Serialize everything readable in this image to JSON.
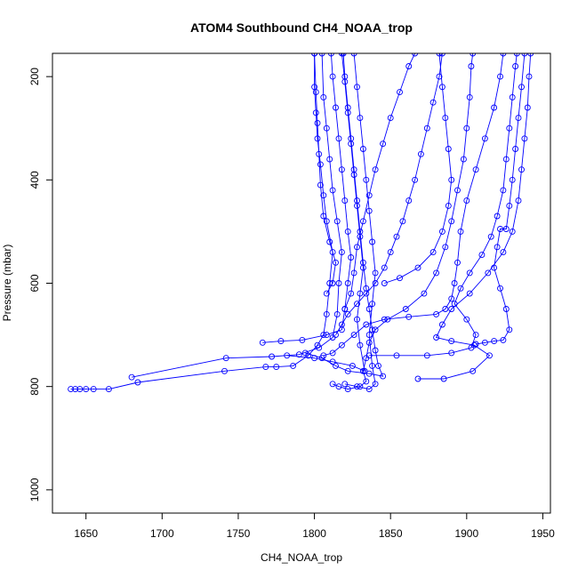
{
  "chart_data": {
    "type": "line",
    "title": "ATOM4 Southbound CH4_NOAA_trop",
    "xlabel": "CH4_NOAA_trop",
    "ylabel": "Pressure (mbar)",
    "xlim": [
      1628,
      1955
    ],
    "ylim": [
      1045,
      155
    ],
    "y_inverted": true,
    "x_ticks": [
      1650,
      1700,
      1750,
      1800,
      1850,
      1900,
      1950
    ],
    "y_ticks": [
      200,
      400,
      600,
      800,
      1000
    ],
    "grid": false,
    "legend": "none",
    "marker": "open-circle",
    "color": "#0000ff",
    "series": [
      {
        "points": [
          [
            1640,
            805
          ],
          [
            1643,
            805
          ],
          [
            1646,
            805
          ],
          [
            1650,
            805
          ],
          [
            1655,
            805
          ],
          [
            1665,
            805
          ],
          [
            1684,
            792
          ],
          [
            1741,
            770
          ],
          [
            1768,
            762
          ],
          [
            1775,
            762
          ],
          [
            1786,
            760
          ],
          [
            1796,
            740
          ],
          [
            1802,
            720
          ],
          [
            1806,
            700
          ],
          [
            1808,
            660
          ],
          [
            1810,
            600
          ],
          [
            1812,
            540
          ],
          [
            1808,
            480
          ],
          [
            1806,
            430
          ],
          [
            1804,
            370
          ],
          [
            1802,
            320
          ],
          [
            1801,
            270
          ],
          [
            1800,
            220
          ],
          [
            1800,
            155
          ]
        ]
      },
      {
        "points": [
          [
            1680,
            782
          ],
          [
            1742,
            745
          ],
          [
            1772,
            742
          ],
          [
            1790,
            738
          ],
          [
            1803,
            725
          ],
          [
            1812,
            705
          ],
          [
            1815,
            660
          ],
          [
            1816,
            600
          ],
          [
            1818,
            540
          ],
          [
            1815,
            480
          ],
          [
            1812,
            420
          ],
          [
            1810,
            360
          ],
          [
            1808,
            300
          ],
          [
            1806,
            240
          ],
          [
            1805,
            155
          ]
        ]
      },
      {
        "points": [
          [
            1766,
            715
          ],
          [
            1778,
            712
          ],
          [
            1792,
            710
          ],
          [
            1808,
            700
          ],
          [
            1818,
            690
          ],
          [
            1820,
            650
          ],
          [
            1822,
            600
          ],
          [
            1824,
            550
          ],
          [
            1822,
            500
          ],
          [
            1820,
            440
          ],
          [
            1818,
            380
          ],
          [
            1816,
            320
          ],
          [
            1814,
            260
          ],
          [
            1812,
            200
          ],
          [
            1811,
            155
          ]
        ]
      },
      {
        "points": [
          [
            1782,
            740
          ],
          [
            1800,
            745
          ],
          [
            1812,
            752
          ],
          [
            1825,
            760
          ],
          [
            1833,
            770
          ],
          [
            1830,
            720
          ],
          [
            1828,
            670
          ],
          [
            1830,
            620
          ],
          [
            1832,
            570
          ],
          [
            1830,
            510
          ],
          [
            1828,
            450
          ],
          [
            1826,
            390
          ],
          [
            1824,
            330
          ],
          [
            1822,
            270
          ],
          [
            1820,
            210
          ],
          [
            1818,
            155
          ]
        ]
      },
      {
        "points": [
          [
            1820,
            795
          ],
          [
            1828,
            800
          ],
          [
            1836,
            805
          ],
          [
            1840,
            795
          ],
          [
            1838,
            760
          ],
          [
            1836,
            700
          ],
          [
            1838,
            640
          ],
          [
            1840,
            580
          ],
          [
            1838,
            520
          ],
          [
            1836,
            460
          ],
          [
            1834,
            400
          ],
          [
            1832,
            340
          ],
          [
            1830,
            280
          ],
          [
            1828,
            220
          ],
          [
            1826,
            155
          ]
        ]
      },
      {
        "points": [
          [
            1806,
            740
          ],
          [
            1812,
            735
          ],
          [
            1818,
            720
          ],
          [
            1826,
            700
          ],
          [
            1834,
            680
          ],
          [
            1846,
            670
          ],
          [
            1862,
            665
          ],
          [
            1880,
            660
          ],
          [
            1886,
            650
          ],
          [
            1890,
            630
          ],
          [
            1892,
            600
          ],
          [
            1894,
            560
          ],
          [
            1896,
            500
          ],
          [
            1900,
            440
          ],
          [
            1906,
            380
          ],
          [
            1912,
            320
          ],
          [
            1918,
            260
          ],
          [
            1922,
            200
          ],
          [
            1924,
            155
          ]
        ]
      },
      {
        "points": [
          [
            1868,
            785
          ],
          [
            1885,
            785
          ],
          [
            1904,
            770
          ],
          [
            1915,
            740
          ],
          [
            1905,
            720
          ],
          [
            1890,
            712
          ],
          [
            1880,
            705
          ],
          [
            1884,
            680
          ],
          [
            1890,
            650
          ],
          [
            1902,
            620
          ],
          [
            1914,
            580
          ],
          [
            1924,
            540
          ],
          [
            1930,
            500
          ],
          [
            1934,
            440
          ],
          [
            1936,
            380
          ],
          [
            1938,
            320
          ],
          [
            1940,
            260
          ],
          [
            1941,
            200
          ],
          [
            1942,
            155
          ]
        ]
      },
      {
        "points": [
          [
            1836,
            740
          ],
          [
            1854,
            740
          ],
          [
            1874,
            740
          ],
          [
            1890,
            735
          ],
          [
            1903,
            725
          ],
          [
            1906,
            700
          ],
          [
            1900,
            670
          ],
          [
            1892,
            640
          ],
          [
            1896,
            610
          ],
          [
            1902,
            580
          ],
          [
            1910,
            545
          ],
          [
            1916,
            510
          ],
          [
            1920,
            470
          ],
          [
            1924,
            420
          ],
          [
            1926,
            360
          ],
          [
            1928,
            300
          ],
          [
            1930,
            240
          ],
          [
            1932,
            180
          ],
          [
            1933,
            155
          ]
        ]
      },
      {
        "points": [
          [
            1794,
            735
          ],
          [
            1805,
            745
          ],
          [
            1814,
            760
          ],
          [
            1822,
            770
          ],
          [
            1836,
            775
          ],
          [
            1845,
            780
          ],
          [
            1842,
            760
          ],
          [
            1840,
            730
          ],
          [
            1838,
            690
          ],
          [
            1836,
            650
          ],
          [
            1834,
            610
          ],
          [
            1832,
            560
          ],
          [
            1830,
            500
          ],
          [
            1828,
            440
          ],
          [
            1826,
            380
          ],
          [
            1824,
            320
          ],
          [
            1822,
            260
          ],
          [
            1820,
            200
          ],
          [
            1819,
            155
          ]
        ]
      },
      {
        "points": [
          [
            1812,
            795
          ],
          [
            1816,
            800
          ],
          [
            1822,
            805
          ],
          [
            1830,
            800
          ],
          [
            1834,
            790
          ],
          [
            1832,
            770
          ],
          [
            1834,
            745
          ],
          [
            1836,
            715
          ],
          [
            1840,
            690
          ],
          [
            1848,
            670
          ],
          [
            1860,
            650
          ],
          [
            1872,
            620
          ],
          [
            1880,
            580
          ],
          [
            1886,
            530
          ],
          [
            1890,
            480
          ],
          [
            1894,
            420
          ],
          [
            1898,
            360
          ],
          [
            1900,
            300
          ],
          [
            1902,
            240
          ],
          [
            1903,
            180
          ],
          [
            1904,
            155
          ]
        ]
      },
      {
        "points": [
          [
            1906,
            718
          ],
          [
            1912,
            715
          ],
          [
            1918,
            712
          ],
          [
            1924,
            710
          ],
          [
            1928,
            690
          ],
          [
            1926,
            650
          ],
          [
            1922,
            610
          ],
          [
            1918,
            570
          ],
          [
            1920,
            530
          ],
          [
            1922,
            495
          ],
          [
            1926,
            495
          ],
          [
            1928,
            450
          ],
          [
            1930,
            400
          ],
          [
            1932,
            340
          ],
          [
            1934,
            280
          ],
          [
            1936,
            220
          ],
          [
            1938,
            155
          ]
        ]
      },
      {
        "points": [
          [
            1808,
            620
          ],
          [
            1812,
            600
          ],
          [
            1814,
            560
          ],
          [
            1810,
            520
          ],
          [
            1806,
            470
          ],
          [
            1804,
            410
          ],
          [
            1803,
            350
          ],
          [
            1802,
            290
          ],
          [
            1801,
            230
          ],
          [
            1800,
            155
          ]
        ]
      },
      {
        "points": [
          [
            1820,
            650
          ],
          [
            1824,
            620
          ],
          [
            1826,
            580
          ],
          [
            1828,
            530
          ],
          [
            1832,
            480
          ],
          [
            1836,
            430
          ],
          [
            1840,
            380
          ],
          [
            1845,
            330
          ],
          [
            1850,
            280
          ],
          [
            1856,
            230
          ],
          [
            1862,
            180
          ],
          [
            1866,
            155
          ]
        ]
      },
      {
        "points": [
          [
            1846,
            600
          ],
          [
            1856,
            590
          ],
          [
            1868,
            570
          ],
          [
            1878,
            540
          ],
          [
            1884,
            500
          ],
          [
            1888,
            450
          ],
          [
            1890,
            400
          ],
          [
            1888,
            340
          ],
          [
            1886,
            280
          ],
          [
            1884,
            220
          ],
          [
            1882,
            155
          ]
        ]
      },
      {
        "points": [
          [
            1814,
            700
          ],
          [
            1818,
            680
          ],
          [
            1822,
            660
          ],
          [
            1828,
            640
          ],
          [
            1834,
            620
          ],
          [
            1840,
            600
          ],
          [
            1846,
            570
          ],
          [
            1850,
            540
          ],
          [
            1854,
            510
          ],
          [
            1858,
            480
          ],
          [
            1862,
            440
          ],
          [
            1866,
            400
          ],
          [
            1870,
            350
          ],
          [
            1874,
            300
          ],
          [
            1878,
            250
          ],
          [
            1882,
            200
          ],
          [
            1884,
            155
          ]
        ]
      }
    ]
  }
}
